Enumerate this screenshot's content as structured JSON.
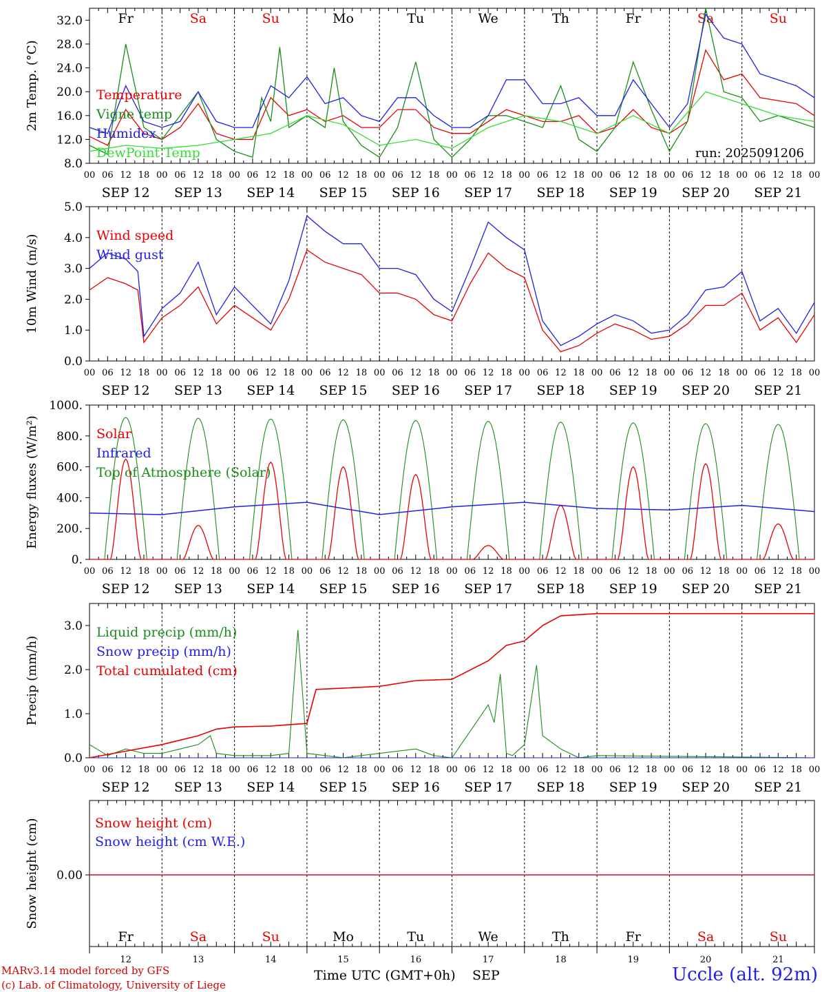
{
  "run_label": "run: 2025091206",
  "day_abbrevs": [
    "Fr",
    "Sa",
    "Su",
    "Mo",
    "Tu",
    "We",
    "Th",
    "Fr",
    "Sa",
    "Su"
  ],
  "weekend_flags": [
    false,
    true,
    true,
    false,
    false,
    false,
    false,
    false,
    true,
    true
  ],
  "date_labels": [
    "SEP 12",
    "SEP 13",
    "SEP 14",
    "SEP 15",
    "SEP 16",
    "SEP 17",
    "SEP 18",
    "SEP 19",
    "SEP 20",
    "SEP 21"
  ],
  "hour_ticks": [
    "00",
    "06",
    "12",
    "18"
  ],
  "bottom_day_numbers": [
    "12",
    "13",
    "14",
    "15",
    "16",
    "17",
    "18",
    "19",
    "20",
    "21"
  ],
  "footer": {
    "model_line": "MARv3.14 model forced by GFS",
    "copyright_line": "(c) Lab. of Climatology, University of Liege",
    "time_axis_label": "Time UTC (GMT+0h)",
    "month_label": "SEP",
    "station_label": "Uccle (alt. 92m)"
  },
  "colors": {
    "red": "#e60000",
    "green": "#1a8c1a",
    "blue": "#1f1fe6",
    "lightgreen": "#33dd33",
    "weekend": "#e60000",
    "black": "#000000"
  },
  "chart_data": [
    {
      "type": "line",
      "ylabel": "2m Temp. (°C)",
      "ylim": [
        8,
        34
      ],
      "yticks": [
        "8.0",
        "12.0",
        "16.0",
        "20.0",
        "24.0",
        "28.0",
        "32.0"
      ],
      "x_unit": "hours since Sep 12 00 UTC",
      "series": [
        {
          "name": "Temperature",
          "color": "red",
          "x": [
            0,
            6,
            12,
            18,
            24,
            30,
            36,
            42,
            48,
            54,
            60,
            66,
            72,
            78,
            84,
            90,
            96,
            102,
            108,
            114,
            120,
            126,
            132,
            138,
            144,
            150,
            156,
            162,
            168,
            174,
            180,
            186,
            192,
            198,
            204,
            210,
            216,
            222,
            234,
            240
          ],
          "y": [
            12.5,
            11,
            17,
            13,
            12,
            14,
            18,
            13,
            12,
            12,
            19,
            16,
            17,
            15,
            16,
            14,
            14,
            17,
            17,
            14,
            13,
            13,
            15,
            17,
            16,
            15,
            15,
            16,
            13,
            14,
            17,
            14,
            13,
            15,
            27,
            22,
            23,
            19,
            18,
            16
          ]
        },
        {
          "name": "Vigne temp",
          "color": "green",
          "x": [
            0,
            6,
            12,
            18,
            24,
            30,
            36,
            42,
            48,
            54,
            57,
            60,
            63,
            66,
            72,
            78,
            81,
            84,
            90,
            96,
            102,
            108,
            114,
            120,
            126,
            132,
            138,
            144,
            150,
            156,
            162,
            168,
            174,
            180,
            186,
            192,
            198,
            204,
            210,
            216,
            222,
            228,
            234,
            240
          ],
          "y": [
            11,
            9.5,
            28,
            14,
            12,
            16,
            20,
            12,
            10,
            9,
            19,
            15,
            27.5,
            14,
            16,
            14,
            24,
            15,
            11,
            9,
            14,
            25,
            12,
            9,
            12,
            16,
            16,
            15,
            14,
            21,
            12,
            10,
            14,
            25,
            17,
            10,
            15,
            34,
            20,
            19,
            15,
            16,
            15,
            14
          ]
        },
        {
          "name": "Humidex",
          "color": "blue",
          "x": [
            0,
            6,
            12,
            18,
            24,
            30,
            36,
            42,
            48,
            54,
            60,
            66,
            72,
            78,
            84,
            90,
            96,
            102,
            108,
            114,
            120,
            126,
            132,
            138,
            144,
            150,
            156,
            162,
            168,
            174,
            180,
            186,
            192,
            198,
            204,
            210,
            216,
            222,
            234,
            240
          ],
          "y": [
            14,
            13,
            21,
            15,
            14,
            15,
            20,
            15,
            14,
            14,
            21,
            19,
            22.5,
            18,
            19,
            16,
            15,
            19,
            19,
            16,
            14,
            14,
            16,
            22,
            22,
            18,
            18,
            19,
            16,
            16,
            22,
            18,
            14,
            18,
            33,
            29,
            28,
            23,
            21,
            19
          ]
        },
        {
          "name": "DewPoint Temp",
          "color": "lightgreen",
          "x": [
            0,
            12,
            24,
            36,
            48,
            60,
            72,
            84,
            96,
            108,
            120,
            132,
            144,
            156,
            168,
            180,
            192,
            204,
            216,
            228,
            240
          ],
          "y": [
            10,
            11,
            10.5,
            11,
            12,
            13,
            16,
            14.5,
            11,
            12,
            10.5,
            14,
            16,
            15,
            13,
            16,
            13,
            20,
            18,
            16,
            15
          ]
        }
      ]
    },
    {
      "type": "line",
      "ylabel": "10m Wind (m/s)",
      "ylim": [
        0,
        5
      ],
      "yticks": [
        "0.0",
        "1.0",
        "2.0",
        "3.0",
        "4.0",
        "5.0"
      ],
      "x_unit": "hours since Sep 12 00 UTC",
      "series": [
        {
          "name": "Wind speed",
          "color": "red",
          "x": [
            0,
            6,
            12,
            16,
            18,
            24,
            30,
            36,
            42,
            48,
            54,
            60,
            66,
            72,
            78,
            84,
            90,
            96,
            102,
            108,
            114,
            120,
            126,
            132,
            138,
            144,
            150,
            156,
            162,
            168,
            174,
            180,
            186,
            192,
            198,
            204,
            210,
            216,
            222,
            228,
            234,
            240
          ],
          "y": [
            2.3,
            2.7,
            2.5,
            2.3,
            0.6,
            1.4,
            1.8,
            2.4,
            1.2,
            1.8,
            1.4,
            1.0,
            2.0,
            3.6,
            3.2,
            3.0,
            2.8,
            2.2,
            2.2,
            2.0,
            1.5,
            1.3,
            2.5,
            3.5,
            3.0,
            2.7,
            1.0,
            0.3,
            0.5,
            0.9,
            1.2,
            1.0,
            0.7,
            0.8,
            1.2,
            1.8,
            1.8,
            2.2,
            1.0,
            1.4,
            0.6,
            1.5
          ]
        },
        {
          "name": "Wind gust",
          "color": "blue",
          "x": [
            0,
            6,
            12,
            16,
            18,
            24,
            30,
            36,
            42,
            48,
            54,
            60,
            66,
            72,
            78,
            84,
            90,
            96,
            102,
            108,
            114,
            120,
            126,
            132,
            138,
            144,
            150,
            156,
            162,
            168,
            174,
            180,
            186,
            192,
            198,
            204,
            210,
            216,
            222,
            228,
            234,
            240
          ],
          "y": [
            3.0,
            3.5,
            3.3,
            2.9,
            0.8,
            1.7,
            2.2,
            3.2,
            1.5,
            2.4,
            1.8,
            1.2,
            2.6,
            4.7,
            4.2,
            3.8,
            3.8,
            3.0,
            3.0,
            2.8,
            2.0,
            1.6,
            3.0,
            4.5,
            4.0,
            3.6,
            1.3,
            0.5,
            0.8,
            1.2,
            1.5,
            1.3,
            0.9,
            1.0,
            1.5,
            2.3,
            2.4,
            2.9,
            1.3,
            1.7,
            0.9,
            1.9
          ]
        }
      ]
    },
    {
      "type": "line",
      "ylabel": "Energy fluxes (W/m²)",
      "ylim": [
        0,
        1000
      ],
      "yticks": [
        "0.",
        "200.",
        "400.",
        "600.",
        "800.",
        "1000."
      ],
      "x_unit": "hours since Sep 12 00 UTC",
      "toa_peaks": [
        920,
        915,
        910,
        905,
        900,
        895,
        890,
        885,
        880,
        875
      ],
      "solar_peaks": [
        650,
        220,
        630,
        600,
        550,
        90,
        350,
        600,
        620,
        230
      ],
      "infrared": {
        "x": [
          0,
          24,
          48,
          72,
          96,
          120,
          144,
          168,
          192,
          216,
          240
        ],
        "y": [
          300,
          290,
          340,
          370,
          290,
          340,
          370,
          330,
          320,
          350,
          310
        ]
      },
      "legend": [
        {
          "name": "Solar",
          "color": "red"
        },
        {
          "name": "Infrared",
          "color": "blue"
        },
        {
          "name": "Top of Atmosphere (Solar)",
          "color": "green"
        }
      ]
    },
    {
      "type": "line",
      "ylabel": "Precip (mm/h)",
      "ylim": [
        0,
        3.5
      ],
      "yticks": [
        "0.0",
        "1.0",
        "2.0",
        "3.0"
      ],
      "x_unit": "hours since Sep 12 00 UTC",
      "series": [
        {
          "name": "Liquid precip (mm/h)",
          "color": "green",
          "x": [
            0,
            6,
            12,
            18,
            24,
            30,
            36,
            40,
            42,
            48,
            60,
            66,
            69,
            72,
            78,
            84,
            96,
            108,
            114,
            120,
            132,
            134,
            136,
            138,
            140,
            144,
            148,
            150,
            156,
            162,
            168,
            240
          ],
          "y": [
            0.3,
            0.05,
            0.2,
            0.1,
            0.1,
            0.2,
            0.3,
            0.5,
            0.1,
            0.05,
            0.05,
            0.1,
            2.9,
            0.1,
            0.05,
            0,
            0.1,
            0.2,
            0.05,
            0,
            1.2,
            0.8,
            1.9,
            0.1,
            0.05,
            0.3,
            2.1,
            0.5,
            0.2,
            0,
            0.05,
            0
          ]
        },
        {
          "name": "Snow precip (mm/h)",
          "color": "blue",
          "x": [
            0,
            240
          ],
          "y": [
            0,
            0
          ]
        },
        {
          "name": "Total cumulated (cm)",
          "color": "red",
          "x": [
            0,
            12,
            24,
            36,
            42,
            48,
            60,
            72,
            75,
            84,
            96,
            108,
            120,
            132,
            138,
            144,
            150,
            156,
            168,
            240
          ],
          "y": [
            0,
            0.15,
            0.3,
            0.5,
            0.65,
            0.7,
            0.72,
            0.78,
            1.55,
            1.58,
            1.62,
            1.75,
            1.78,
            2.2,
            2.55,
            2.65,
            3.0,
            3.22,
            3.27,
            3.27
          ]
        }
      ]
    },
    {
      "type": "line",
      "ylabel": "Snow height (cm)",
      "yticks": [
        "0.00"
      ],
      "x_unit": "hours since Sep 12 00 UTC",
      "series": [
        {
          "name": "Snow height (cm)",
          "color": "red",
          "x": [
            0,
            240
          ],
          "y": [
            0,
            0
          ]
        },
        {
          "name": "Snow height (cm W.E.)",
          "color": "blue",
          "x": [
            0,
            240
          ],
          "y": [
            0,
            0
          ]
        }
      ]
    }
  ]
}
